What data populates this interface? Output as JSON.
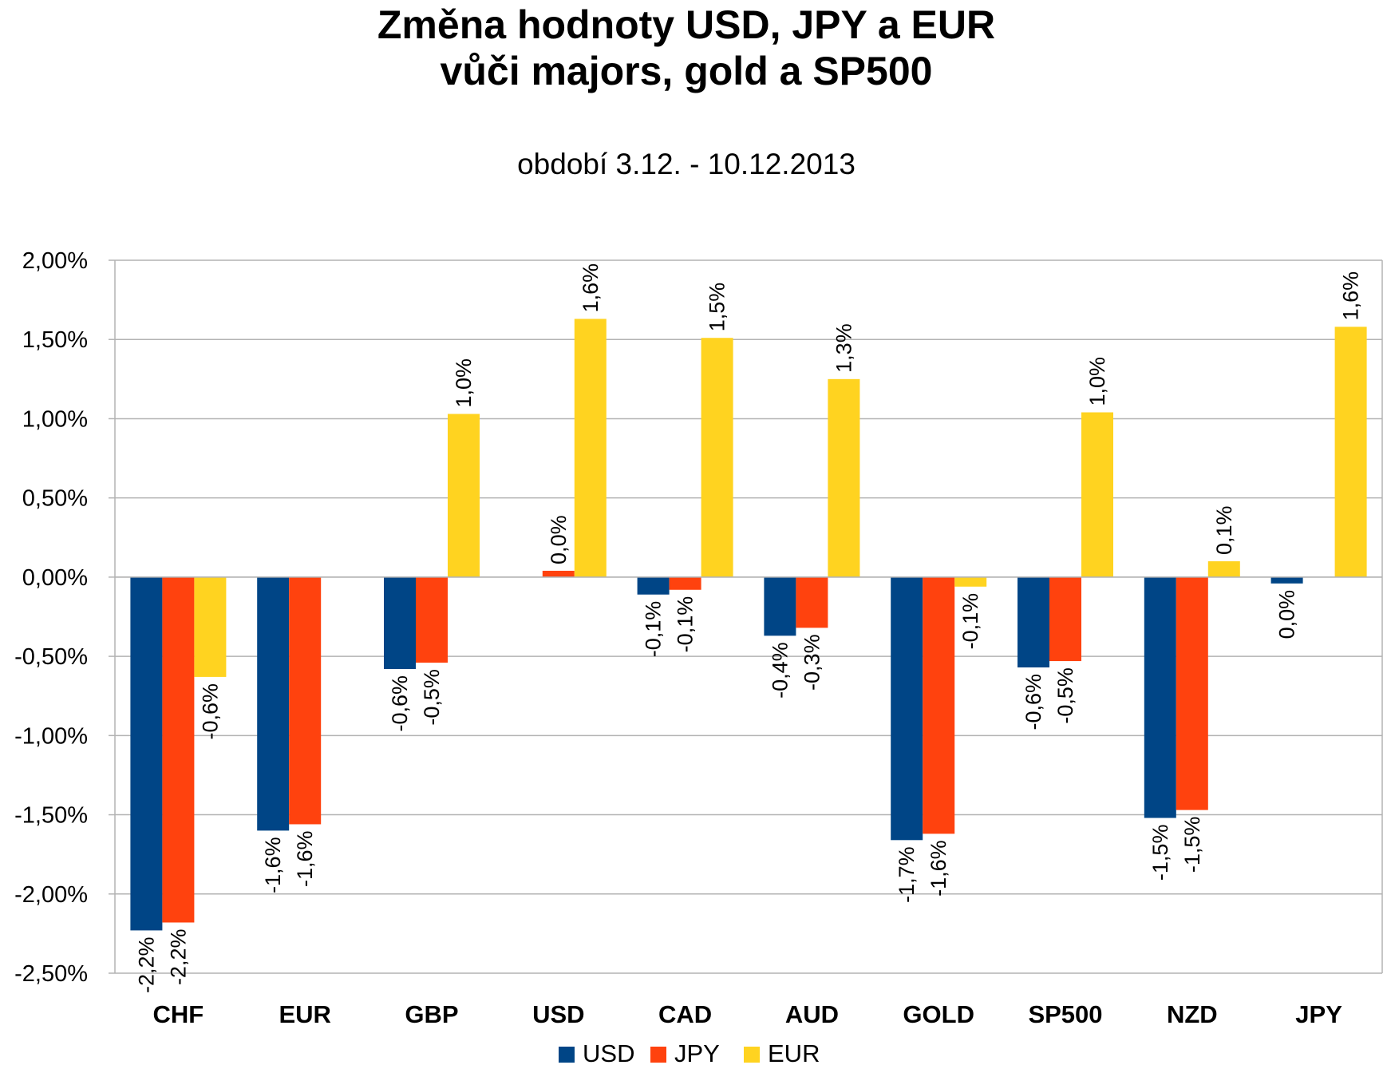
{
  "chart_data": {
    "type": "bar",
    "title": [
      "Změna hodnoty USD, JPY a EUR",
      "vůči majors, gold a SP500"
    ],
    "subtitle": "období 3.12. - 10.12.2013",
    "categories": [
      "CHF",
      "EUR",
      "GBP",
      "USD",
      "CAD",
      "AUD",
      "GOLD",
      "SP500",
      "NZD",
      "JPY"
    ],
    "series": [
      {
        "name": "USD",
        "color": "#004586",
        "values": [
          -2.23,
          -1.6,
          -0.58,
          null,
          -0.11,
          -0.37,
          -1.66,
          -0.57,
          -1.52,
          -0.04
        ],
        "labels": [
          "-2,2%",
          "-1,6%",
          "-0,6%",
          null,
          "-0,1%",
          "-0,4%",
          "-1,7%",
          "-0,6%",
          "-1,5%",
          "0,0%"
        ]
      },
      {
        "name": "JPY",
        "color": "#ff420e",
        "values": [
          -2.18,
          -1.56,
          -0.54,
          0.04,
          -0.08,
          -0.32,
          -1.62,
          -0.53,
          -1.47,
          null
        ],
        "labels": [
          "-2,2%",
          "-1,6%",
          "-0,5%",
          "0,0%",
          "-0,1%",
          "-0,3%",
          "-1,6%",
          "-0,5%",
          "-1,5%",
          null
        ]
      },
      {
        "name": "EUR",
        "color": "#ffd320",
        "values": [
          -0.63,
          null,
          1.03,
          1.63,
          1.51,
          1.25,
          -0.06,
          1.04,
          0.1,
          1.58
        ],
        "labels": [
          "-0,6%",
          null,
          "1,0%",
          "1,6%",
          "1,5%",
          "1,3%",
          "-0,1%",
          "1,0%",
          "0,1%",
          "1,6%"
        ]
      }
    ],
    "ylim": [
      -2.5,
      2.0
    ],
    "yticks": [
      2.0,
      1.5,
      1.0,
      0.5,
      0.0,
      -0.5,
      -1.0,
      -1.5,
      -2.0,
      -2.5
    ],
    "ytick_labels": [
      "2,00%",
      "1,50%",
      "1,00%",
      "0,50%",
      "0,00%",
      "-0,50%",
      "-1,00%",
      "-1,50%",
      "-2,00%",
      "-2,50%"
    ],
    "grid": true,
    "legend": "bottom"
  }
}
